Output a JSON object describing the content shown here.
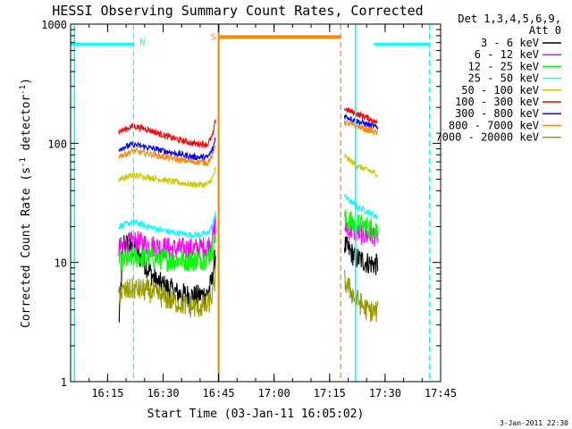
{
  "chart_data": {
    "type": "line",
    "title": "HESSI Observing Summary Count Rates, Corrected",
    "xlabel": "Start Time (03-Jan-11 16:05:02)",
    "ylabel_main": "Corrected Count Rate (s",
    "ylabel_sup": "-1",
    "ylabel_tail": " detector",
    "ylabel_sup2": "-1",
    "ylabel_end": ")",
    "yscale": "log",
    "ylim": [
      1,
      1000
    ],
    "xlim_min": [
      965,
      1065
    ],
    "x_ticks": [
      {
        "min": 975,
        "label": "16:15"
      },
      {
        "min": 990,
        "label": "16:30"
      },
      {
        "min": 1005,
        "label": "16:45"
      },
      {
        "min": 1020,
        "label": "17:00"
      },
      {
        "min": 1035,
        "label": "17:15"
      },
      {
        "min": 1050,
        "label": "17:30"
      },
      {
        "min": 1065,
        "label": "17:45"
      }
    ],
    "y_ticks": [
      {
        "value": 1,
        "label": "1"
      },
      {
        "value": 10,
        "label": "10"
      },
      {
        "value": 100,
        "label": "100"
      },
      {
        "value": 1000,
        "label": "1000"
      }
    ],
    "legend_header": [
      "Det 1,3,4,5,6,9,",
      "Att 0"
    ],
    "series": [
      {
        "name": "3 - 6 keV",
        "color": "#000000",
        "seg1": [
          [
            978,
            3
          ],
          [
            979.3,
            15
          ],
          [
            984,
            11
          ],
          [
            988,
            7
          ],
          [
            994,
            5.5
          ],
          [
            999,
            5.2
          ],
          [
            1002,
            5.5
          ],
          [
            1003.2,
            7
          ],
          [
            1004.2,
            12
          ]
        ],
        "seg2": [
          [
            1039,
            14
          ],
          [
            1042,
            11
          ],
          [
            1045,
            10
          ],
          [
            1048,
            9.5
          ]
        ]
      },
      {
        "name": "6 - 12 keV",
        "color": "#ff00ff",
        "seg1": [
          [
            978,
            13
          ],
          [
            982,
            15
          ],
          [
            986,
            14
          ],
          [
            992,
            13
          ],
          [
            998,
            13
          ],
          [
            1002,
            13.5
          ],
          [
            1003.5,
            16
          ],
          [
            1004.2,
            22
          ]
        ],
        "seg2": [
          [
            1039,
            20
          ],
          [
            1042,
            18
          ],
          [
            1045,
            17
          ],
          [
            1048,
            17
          ]
        ]
      },
      {
        "name": "12 - 25 keV",
        "color": "#00ff00",
        "seg1": [
          [
            978,
            10
          ],
          [
            982,
            11
          ],
          [
            986,
            11
          ],
          [
            992,
            10.5
          ],
          [
            998,
            10.5
          ],
          [
            1002,
            11
          ],
          [
            1003.5,
            13
          ],
          [
            1004.2,
            18
          ]
        ],
        "seg2": [
          [
            1039,
            23
          ],
          [
            1042,
            21
          ],
          [
            1045,
            20
          ],
          [
            1048,
            19
          ]
        ]
      },
      {
        "name": "25 - 50 keV",
        "color": "#00ffff",
        "seg1": [
          [
            978,
            20
          ],
          [
            982,
            22
          ],
          [
            986,
            20
          ],
          [
            992,
            18
          ],
          [
            998,
            17
          ],
          [
            1002,
            17.5
          ],
          [
            1003.5,
            21
          ],
          [
            1004.2,
            28
          ]
        ],
        "seg2": [
          [
            1039,
            36
          ],
          [
            1042,
            30
          ],
          [
            1045,
            27
          ],
          [
            1048,
            24
          ]
        ]
      },
      {
        "name": "50 - 100 keV",
        "color": "#cccc00",
        "seg1": [
          [
            978,
            50
          ],
          [
            982,
            54
          ],
          [
            986,
            52
          ],
          [
            992,
            48
          ],
          [
            998,
            45
          ],
          [
            1002,
            45
          ],
          [
            1003.5,
            52
          ],
          [
            1004.2,
            62
          ]
        ],
        "seg2": [
          [
            1039,
            78
          ],
          [
            1042,
            66
          ],
          [
            1045,
            60
          ],
          [
            1048,
            55
          ]
        ]
      },
      {
        "name": "100 - 300 keV",
        "color": "#ff0000",
        "seg1": [
          [
            978,
            125
          ],
          [
            982,
            140
          ],
          [
            986,
            130
          ],
          [
            992,
            112
          ],
          [
            998,
            100
          ],
          [
            1002,
            98
          ],
          [
            1003.5,
            118
          ],
          [
            1004.2,
            160
          ]
        ],
        "seg2": [
          [
            1039,
            195
          ],
          [
            1042,
            178
          ],
          [
            1045,
            165
          ],
          [
            1048,
            148
          ]
        ]
      },
      {
        "name": "300 - 800 keV",
        "color": "#0000ff",
        "seg1": [
          [
            978,
            90
          ],
          [
            982,
            98
          ],
          [
            986,
            92
          ],
          [
            992,
            84
          ],
          [
            998,
            77
          ],
          [
            1002,
            76
          ],
          [
            1003.5,
            90
          ],
          [
            1004.2,
            115
          ]
        ],
        "seg2": [
          [
            1039,
            170
          ],
          [
            1042,
            155
          ],
          [
            1045,
            145
          ],
          [
            1048,
            135
          ]
        ]
      },
      {
        "name": "800 - 7000 keV",
        "color": "#ff8800",
        "seg1": [
          [
            978,
            78
          ],
          [
            982,
            86
          ],
          [
            986,
            82
          ],
          [
            992,
            75
          ],
          [
            998,
            70
          ],
          [
            1002,
            69
          ],
          [
            1003.5,
            80
          ],
          [
            1004.2,
            100
          ]
        ],
        "seg2": [
          [
            1039,
            150
          ],
          [
            1042,
            140
          ],
          [
            1045,
            130
          ],
          [
            1048,
            122
          ]
        ]
      },
      {
        "name": "7000 - 20000 keV",
        "color": "#999900",
        "seg1": [
          [
            978,
            5.5
          ],
          [
            982,
            6
          ],
          [
            986,
            5.8
          ],
          [
            992,
            4.8
          ],
          [
            998,
            4.2
          ],
          [
            1002,
            4.3
          ],
          [
            1003.5,
            5.5
          ],
          [
            1004.2,
            8
          ]
        ],
        "seg2": [
          [
            1039,
            7
          ],
          [
            1042,
            5
          ],
          [
            1045,
            4
          ],
          [
            1048,
            3.8
          ]
        ]
      }
    ],
    "annotations": {
      "saa_bar": {
        "label": "S",
        "color": "#ff8800",
        "x_start": 1005,
        "x_end": 1038,
        "y": 780
      },
      "night_bars": {
        "label": "N",
        "color": "#00ffff",
        "segments": [
          [
            965,
            982,
            680
          ],
          [
            1047,
            1062,
            680
          ]
        ]
      },
      "vlines": [
        {
          "x": 982,
          "color": "#00ffff",
          "style": "dashed"
        },
        {
          "x": 1005,
          "color": "#ff8800",
          "style": "solid"
        },
        {
          "x": 1038,
          "color": "#ff8800",
          "style": "dashed"
        },
        {
          "x": 1042,
          "color": "#00ffff",
          "style": "solid"
        },
        {
          "x": 1062,
          "color": "#00ffff",
          "style": "dashed"
        }
      ],
      "left_cyan_x": 966
    },
    "data_gaps": [
      [
        1005,
        1038
      ]
    ]
  },
  "footer_date": "3-Jan-2011 22:30"
}
